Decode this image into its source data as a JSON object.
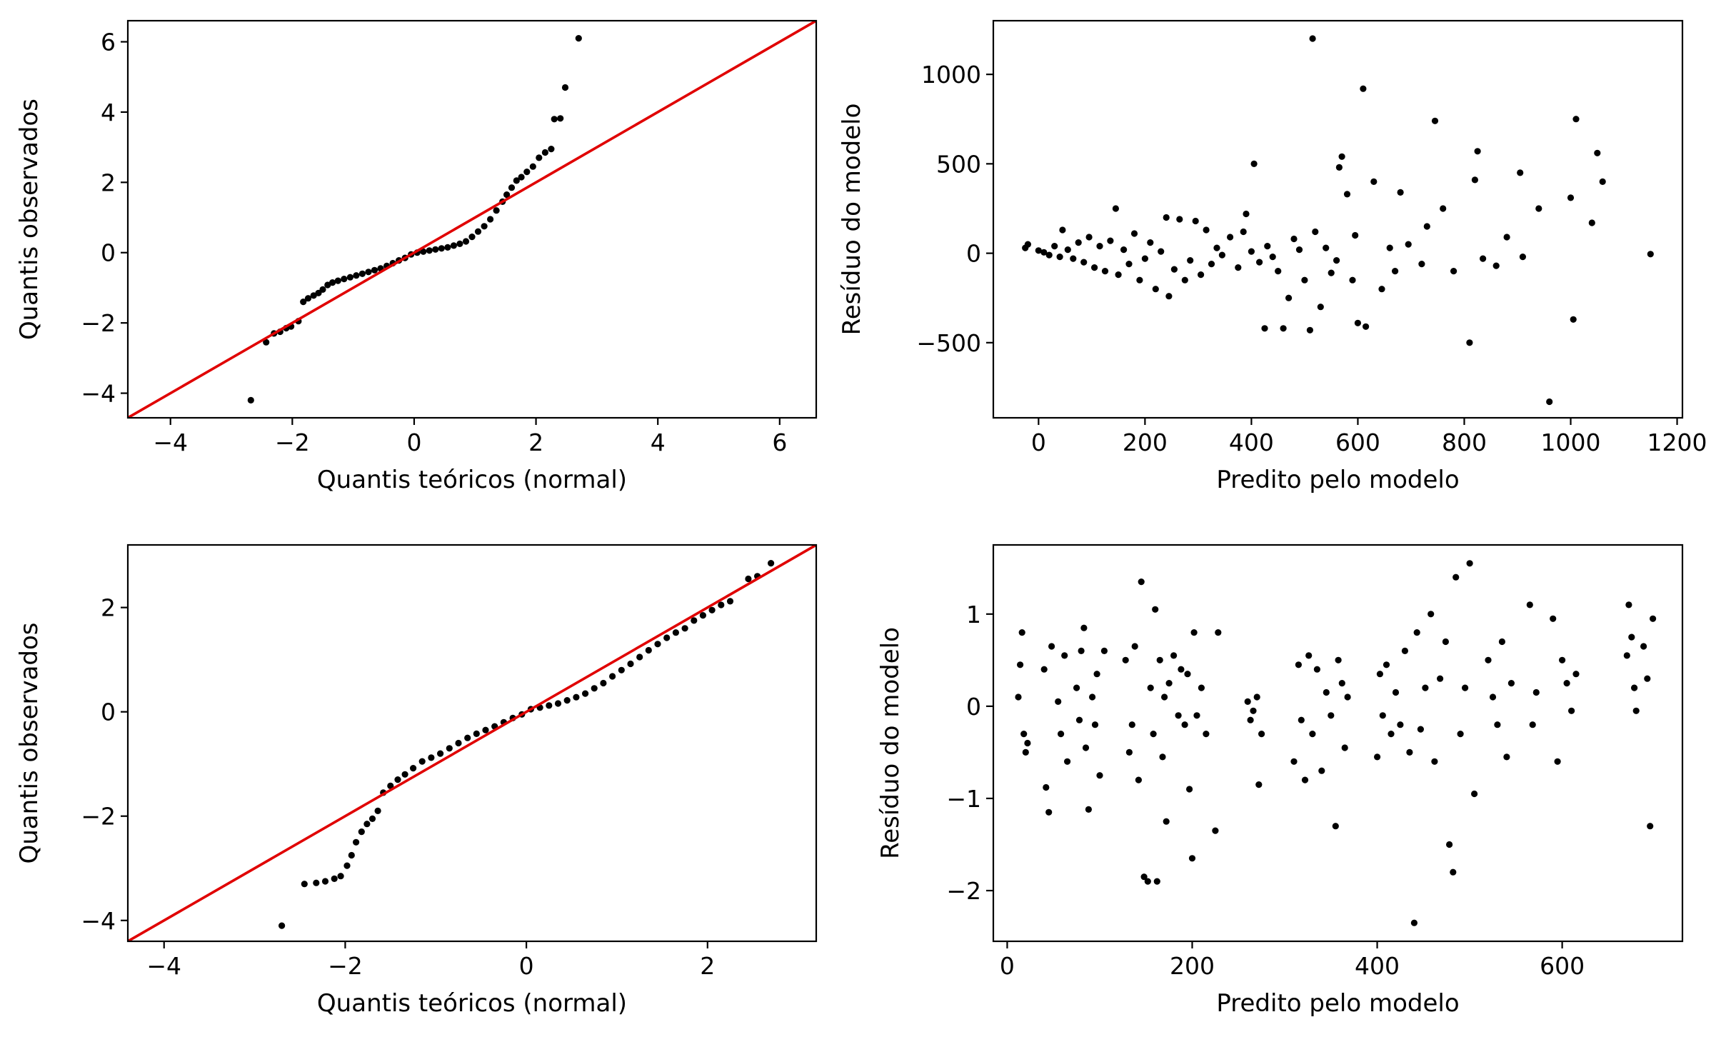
{
  "chart_data": [
    {
      "type": "scatter",
      "xlabel": "Quantis teóricos (normal)",
      "ylabel": "Quantis observados",
      "xlim": [
        -4.7,
        6.6
      ],
      "ylim": [
        -4.7,
        6.6
      ],
      "xticks": [
        -4,
        -2,
        0,
        2,
        4,
        6
      ],
      "yticks": [
        -4,
        -2,
        0,
        2,
        4,
        6
      ],
      "reference_line": {
        "slope": 1,
        "intercept": 0,
        "color": "#e00000"
      },
      "point_color": "#000000",
      "points": [
        [
          -2.68,
          -4.2
        ],
        [
          -2.43,
          -2.55
        ],
        [
          -2.3,
          -2.3
        ],
        [
          -2.2,
          -2.25
        ],
        [
          -2.1,
          -2.15
        ],
        [
          -2.02,
          -2.1
        ],
        [
          -1.9,
          -1.95
        ],
        [
          -1.82,
          -1.4
        ],
        [
          -1.74,
          -1.3
        ],
        [
          -1.65,
          -1.22
        ],
        [
          -1.57,
          -1.15
        ],
        [
          -1.5,
          -1.05
        ],
        [
          -1.42,
          -0.92
        ],
        [
          -1.34,
          -0.85
        ],
        [
          -1.25,
          -0.8
        ],
        [
          -1.15,
          -0.75
        ],
        [
          -1.05,
          -0.7
        ],
        [
          -0.95,
          -0.65
        ],
        [
          -0.85,
          -0.6
        ],
        [
          -0.75,
          -0.55
        ],
        [
          -0.65,
          -0.5
        ],
        [
          -0.55,
          -0.45
        ],
        [
          -0.45,
          -0.38
        ],
        [
          -0.35,
          -0.3
        ],
        [
          -0.25,
          -0.22
        ],
        [
          -0.15,
          -0.15
        ],
        [
          -0.05,
          -0.05
        ],
        [
          0.05,
          0
        ],
        [
          0.15,
          0.03
        ],
        [
          0.25,
          0.06
        ],
        [
          0.35,
          0.09
        ],
        [
          0.45,
          0.12
        ],
        [
          0.55,
          0.15
        ],
        [
          0.65,
          0.2
        ],
        [
          0.75,
          0.25
        ],
        [
          0.85,
          0.32
        ],
        [
          0.95,
          0.45
        ],
        [
          1.05,
          0.6
        ],
        [
          1.15,
          0.75
        ],
        [
          1.25,
          0.95
        ],
        [
          1.35,
          1.2
        ],
        [
          1.45,
          1.45
        ],
        [
          1.52,
          1.65
        ],
        [
          1.6,
          1.85
        ],
        [
          1.68,
          2.05
        ],
        [
          1.76,
          2.15
        ],
        [
          1.85,
          2.3
        ],
        [
          1.95,
          2.45
        ],
        [
          2.05,
          2.7
        ],
        [
          2.15,
          2.85
        ],
        [
          2.25,
          2.95
        ],
        [
          2.3,
          3.8
        ],
        [
          2.4,
          3.82
        ],
        [
          2.48,
          4.7
        ],
        [
          2.7,
          6.1
        ]
      ]
    },
    {
      "type": "scatter",
      "xlabel": "Predito pelo modelo",
      "ylabel": "Resíduo do modelo",
      "xlim": [
        -85,
        1210
      ],
      "ylim": [
        -920,
        1300
      ],
      "xticks": [
        0,
        200,
        400,
        600,
        800,
        1000,
        1200
      ],
      "yticks": [
        -500,
        0,
        500,
        1000
      ],
      "point_color": "#000000",
      "points": [
        [
          -25,
          30
        ],
        [
          -20,
          50
        ],
        [
          0,
          15
        ],
        [
          10,
          5
        ],
        [
          20,
          -10
        ],
        [
          30,
          40
        ],
        [
          40,
          -20
        ],
        [
          45,
          130
        ],
        [
          55,
          20
        ],
        [
          65,
          -30
        ],
        [
          75,
          60
        ],
        [
          85,
          -50
        ],
        [
          95,
          90
        ],
        [
          105,
          -80
        ],
        [
          115,
          40
        ],
        [
          125,
          -100
        ],
        [
          135,
          70
        ],
        [
          145,
          250
        ],
        [
          150,
          -120
        ],
        [
          160,
          20
        ],
        [
          170,
          -60
        ],
        [
          180,
          110
        ],
        [
          190,
          -150
        ],
        [
          200,
          -30
        ],
        [
          210,
          60
        ],
        [
          220,
          -200
        ],
        [
          230,
          10
        ],
        [
          240,
          200
        ],
        [
          245,
          -240
        ],
        [
          255,
          -90
        ],
        [
          265,
          190
        ],
        [
          275,
          -150
        ],
        [
          285,
          -40
        ],
        [
          295,
          180
        ],
        [
          305,
          -120
        ],
        [
          315,
          130
        ],
        [
          325,
          -60
        ],
        [
          335,
          30
        ],
        [
          345,
          -10
        ],
        [
          360,
          90
        ],
        [
          375,
          -80
        ],
        [
          385,
          120
        ],
        [
          390,
          220
        ],
        [
          400,
          10
        ],
        [
          405,
          500
        ],
        [
          415,
          -50
        ],
        [
          425,
          -420
        ],
        [
          430,
          40
        ],
        [
          440,
          -20
        ],
        [
          450,
          -100
        ],
        [
          460,
          -420
        ],
        [
          470,
          -250
        ],
        [
          480,
          80
        ],
        [
          490,
          20
        ],
        [
          500,
          -150
        ],
        [
          510,
          -430
        ],
        [
          515,
          1200
        ],
        [
          520,
          120
        ],
        [
          530,
          -300
        ],
        [
          540,
          30
        ],
        [
          550,
          -110
        ],
        [
          560,
          -40
        ],
        [
          565,
          480
        ],
        [
          570,
          540
        ],
        [
          580,
          330
        ],
        [
          590,
          -150
        ],
        [
          595,
          100
        ],
        [
          600,
          -390
        ],
        [
          610,
          920
        ],
        [
          615,
          -410
        ],
        [
          630,
          400
        ],
        [
          645,
          -200
        ],
        [
          660,
          30
        ],
        [
          670,
          -100
        ],
        [
          680,
          340
        ],
        [
          695,
          50
        ],
        [
          720,
          -60
        ],
        [
          730,
          150
        ],
        [
          745,
          740
        ],
        [
          760,
          250
        ],
        [
          780,
          -100
        ],
        [
          810,
          -500
        ],
        [
          820,
          410
        ],
        [
          825,
          570
        ],
        [
          835,
          -30
        ],
        [
          860,
          -70
        ],
        [
          880,
          90
        ],
        [
          905,
          450
        ],
        [
          910,
          -20
        ],
        [
          940,
          250
        ],
        [
          960,
          -830
        ],
        [
          1000,
          310
        ],
        [
          1005,
          -370
        ],
        [
          1010,
          750
        ],
        [
          1040,
          170
        ],
        [
          1050,
          560
        ],
        [
          1060,
          400
        ],
        [
          1150,
          -5
        ]
      ]
    },
    {
      "type": "scatter",
      "xlabel": "Quantis teóricos (normal)",
      "ylabel": "Quantis observados",
      "xlim": [
        -4.4,
        3.2
      ],
      "ylim": [
        -4.4,
        3.2
      ],
      "xticks": [
        -4,
        -2,
        0,
        2
      ],
      "yticks": [
        -4,
        -2,
        0,
        2
      ],
      "reference_line": {
        "slope": 1,
        "intercept": 0,
        "color": "#e00000"
      },
      "point_color": "#000000",
      "points": [
        [
          -2.7,
          -4.1
        ],
        [
          -2.45,
          -3.3
        ],
        [
          -2.32,
          -3.28
        ],
        [
          -2.22,
          -3.25
        ],
        [
          -2.12,
          -3.2
        ],
        [
          -2.05,
          -3.15
        ],
        [
          -1.98,
          -2.95
        ],
        [
          -1.93,
          -2.75
        ],
        [
          -1.88,
          -2.5
        ],
        [
          -1.82,
          -2.3
        ],
        [
          -1.76,
          -2.15
        ],
        [
          -1.7,
          -2.05
        ],
        [
          -1.64,
          -1.9
        ],
        [
          -1.58,
          -1.55
        ],
        [
          -1.5,
          -1.42
        ],
        [
          -1.42,
          -1.3
        ],
        [
          -1.34,
          -1.2
        ],
        [
          -1.25,
          -1.08
        ],
        [
          -1.15,
          -0.95
        ],
        [
          -1.05,
          -0.88
        ],
        [
          -0.95,
          -0.8
        ],
        [
          -0.85,
          -0.7
        ],
        [
          -0.75,
          -0.6
        ],
        [
          -0.65,
          -0.5
        ],
        [
          -0.55,
          -0.42
        ],
        [
          -0.45,
          -0.35
        ],
        [
          -0.35,
          -0.28
        ],
        [
          -0.25,
          -0.2
        ],
        [
          -0.15,
          -0.12
        ],
        [
          -0.05,
          -0.05
        ],
        [
          0.05,
          0.05
        ],
        [
          0.15,
          0.08
        ],
        [
          0.25,
          0.12
        ],
        [
          0.35,
          0.16
        ],
        [
          0.45,
          0.22
        ],
        [
          0.55,
          0.28
        ],
        [
          0.65,
          0.35
        ],
        [
          0.75,
          0.45
        ],
        [
          0.85,
          0.55
        ],
        [
          0.95,
          0.68
        ],
        [
          1.05,
          0.8
        ],
        [
          1.15,
          0.92
        ],
        [
          1.25,
          1.05
        ],
        [
          1.35,
          1.18
        ],
        [
          1.45,
          1.3
        ],
        [
          1.55,
          1.42
        ],
        [
          1.65,
          1.52
        ],
        [
          1.75,
          1.6
        ],
        [
          1.85,
          1.75
        ],
        [
          1.95,
          1.85
        ],
        [
          2.05,
          1.95
        ],
        [
          2.15,
          2.05
        ],
        [
          2.25,
          2.12
        ],
        [
          2.45,
          2.55
        ],
        [
          2.55,
          2.6
        ],
        [
          2.7,
          2.85
        ]
      ]
    },
    {
      "type": "scatter",
      "xlabel": "Predito pelo modelo",
      "ylabel": "Resíduo do modelo",
      "xlim": [
        -15,
        730
      ],
      "ylim": [
        -2.55,
        1.75
      ],
      "xticks": [
        0,
        200,
        400,
        600
      ],
      "yticks": [
        -2,
        -1,
        0,
        1
      ],
      "point_color": "#000000",
      "points": [
        [
          12,
          0.1
        ],
        [
          14,
          0.45
        ],
        [
          16,
          0.8
        ],
        [
          18,
          -0.3
        ],
        [
          20,
          -0.5
        ],
        [
          22,
          -0.4
        ],
        [
          40,
          0.4
        ],
        [
          42,
          -0.88
        ],
        [
          45,
          -1.15
        ],
        [
          48,
          0.65
        ],
        [
          55,
          0.05
        ],
        [
          58,
          -0.3
        ],
        [
          62,
          0.55
        ],
        [
          65,
          -0.6
        ],
        [
          75,
          0.2
        ],
        [
          78,
          -0.15
        ],
        [
          80,
          0.6
        ],
        [
          83,
          0.85
        ],
        [
          85,
          -0.45
        ],
        [
          88,
          -1.12
        ],
        [
          92,
          0.1
        ],
        [
          95,
          -0.2
        ],
        [
          97,
          0.35
        ],
        [
          100,
          -0.75
        ],
        [
          105,
          0.6
        ],
        [
          128,
          0.5
        ],
        [
          132,
          -0.5
        ],
        [
          135,
          -0.2
        ],
        [
          138,
          0.65
        ],
        [
          142,
          -0.8
        ],
        [
          145,
          1.35
        ],
        [
          148,
          -1.85
        ],
        [
          152,
          -1.9
        ],
        [
          155,
          0.2
        ],
        [
          158,
          -0.3
        ],
        [
          160,
          1.05
        ],
        [
          162,
          -1.9
        ],
        [
          165,
          0.5
        ],
        [
          168,
          -0.55
        ],
        [
          170,
          0.1
        ],
        [
          172,
          -1.25
        ],
        [
          175,
          0.25
        ],
        [
          180,
          0.55
        ],
        [
          185,
          -0.1
        ],
        [
          188,
          0.4
        ],
        [
          192,
          -0.2
        ],
        [
          195,
          0.35
        ],
        [
          197,
          -0.9
        ],
        [
          200,
          -1.65
        ],
        [
          202,
          0.8
        ],
        [
          205,
          -0.1
        ],
        [
          210,
          0.2
        ],
        [
          215,
          -0.3
        ],
        [
          225,
          -1.35
        ],
        [
          228,
          0.8
        ],
        [
          260,
          0.05
        ],
        [
          263,
          -0.15
        ],
        [
          266,
          -0.05
        ],
        [
          270,
          0.1
        ],
        [
          272,
          -0.85
        ],
        [
          275,
          -0.3
        ],
        [
          310,
          -0.6
        ],
        [
          315,
          0.45
        ],
        [
          318,
          -0.15
        ],
        [
          322,
          -0.8
        ],
        [
          326,
          0.55
        ],
        [
          330,
          -0.3
        ],
        [
          335,
          0.4
        ],
        [
          340,
          -0.7
        ],
        [
          345,
          0.15
        ],
        [
          350,
          -0.1
        ],
        [
          355,
          -1.3
        ],
        [
          358,
          0.5
        ],
        [
          362,
          0.25
        ],
        [
          365,
          -0.45
        ],
        [
          368,
          0.1
        ],
        [
          400,
          -0.55
        ],
        [
          403,
          0.35
        ],
        [
          406,
          -0.1
        ],
        [
          410,
          0.45
        ],
        [
          415,
          -0.3
        ],
        [
          420,
          0.15
        ],
        [
          425,
          -0.2
        ],
        [
          430,
          0.6
        ],
        [
          435,
          -0.5
        ],
        [
          440,
          -2.35
        ],
        [
          443,
          0.8
        ],
        [
          447,
          -0.25
        ],
        [
          452,
          0.2
        ],
        [
          458,
          1.0
        ],
        [
          462,
          -0.6
        ],
        [
          468,
          0.3
        ],
        [
          474,
          0.7
        ],
        [
          478,
          -1.5
        ],
        [
          482,
          -1.8
        ],
        [
          485,
          1.4
        ],
        [
          490,
          -0.3
        ],
        [
          495,
          0.2
        ],
        [
          500,
          1.55
        ],
        [
          505,
          -0.95
        ],
        [
          520,
          0.5
        ],
        [
          525,
          0.1
        ],
        [
          530,
          -0.2
        ],
        [
          535,
          0.7
        ],
        [
          540,
          -0.55
        ],
        [
          545,
          0.25
        ],
        [
          565,
          1.1
        ],
        [
          568,
          -0.2
        ],
        [
          572,
          0.15
        ],
        [
          590,
          0.95
        ],
        [
          595,
          -0.6
        ],
        [
          600,
          0.5
        ],
        [
          605,
          0.25
        ],
        [
          610,
          -0.05
        ],
        [
          615,
          0.35
        ],
        [
          670,
          0.55
        ],
        [
          672,
          1.1
        ],
        [
          675,
          0.75
        ],
        [
          678,
          0.2
        ],
        [
          680,
          -0.05
        ],
        [
          688,
          0.65
        ],
        [
          692,
          0.3
        ],
        [
          695,
          -1.3
        ],
        [
          698,
          0.95
        ]
      ]
    }
  ]
}
